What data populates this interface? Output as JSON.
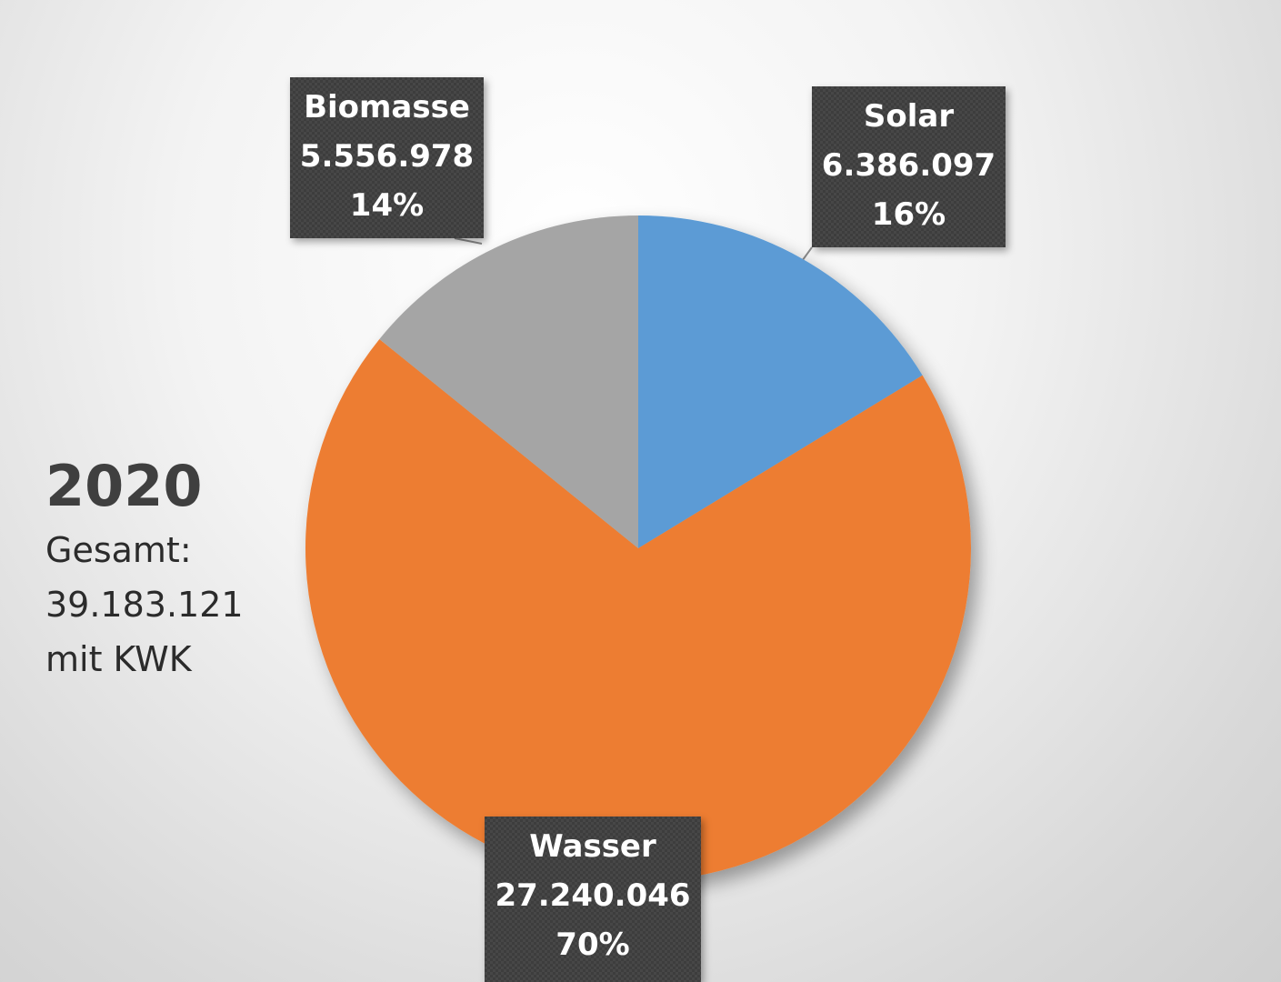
{
  "chart_data": {
    "type": "pie",
    "categories": [
      "Solar",
      "Wasser",
      "Biomasse"
    ],
    "values": [
      6386097,
      27240046,
      5556978
    ],
    "value_labels": [
      "6.386.097",
      "27.240.046",
      "5.556.978"
    ],
    "percent_labels": [
      "16%",
      "70%",
      "14%"
    ],
    "colors": [
      "#5b9bd5",
      "#ed7d31",
      "#a5a5a5"
    ],
    "start_angle": "12 o'clock",
    "direction": "clockwise",
    "legend": "none",
    "data_labels": "callouts"
  },
  "annotation": {
    "year": "2020",
    "line1": "Gesamt:",
    "line2": "39.183.121",
    "line3": "mit KWK"
  }
}
